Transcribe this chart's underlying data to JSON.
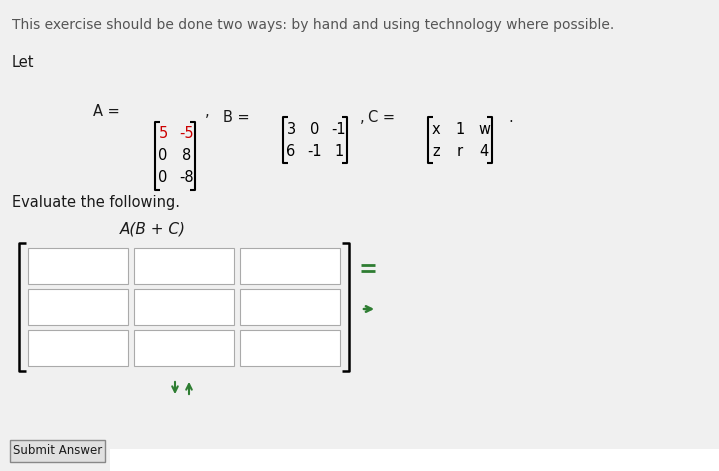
{
  "title_text": "This exercise should be done two ways: by hand and using technology where possible.",
  "let_text": "Let",
  "A_matrix": [
    [
      "5",
      "-5"
    ],
    [
      "0",
      "8"
    ],
    [
      "0",
      "-8"
    ]
  ],
  "B_matrix": [
    [
      "3",
      "0",
      "-1"
    ],
    [
      "6",
      "-1",
      "1"
    ]
  ],
  "C_matrix": [
    [
      "x",
      "1",
      "w"
    ],
    [
      "z",
      "r",
      "4"
    ]
  ],
  "A_colors": [
    [
      "#cc0000",
      "#cc0000"
    ],
    [
      "#000000",
      "#000000"
    ],
    [
      "#000000",
      "#000000"
    ]
  ],
  "B_colors": [
    [
      "#000000",
      "#000000",
      "#000000"
    ],
    [
      "#000000",
      "#000000",
      "#000000"
    ]
  ],
  "C_colors": [
    [
      "#000000",
      "#000000",
      "#000000"
    ],
    [
      "#000000",
      "#000000",
      "#000000"
    ]
  ],
  "evaluate_text": "Evaluate the following.",
  "expression_text": "A(B + C)",
  "grid_rows": 3,
  "grid_cols": 3,
  "submit_text": "Submit Answer",
  "bg_color": "#f0f0f0",
  "text_color": "#1a1a1a",
  "arrow_color": "#2e7d32",
  "box_fill": "#ffffff",
  "box_edge": "#aaaaaa",
  "title_color": "#555555",
  "font_size_title": 10.0,
  "font_size_body": 10.5,
  "font_size_matrix": 10.5,
  "font_size_expr": 11.0
}
